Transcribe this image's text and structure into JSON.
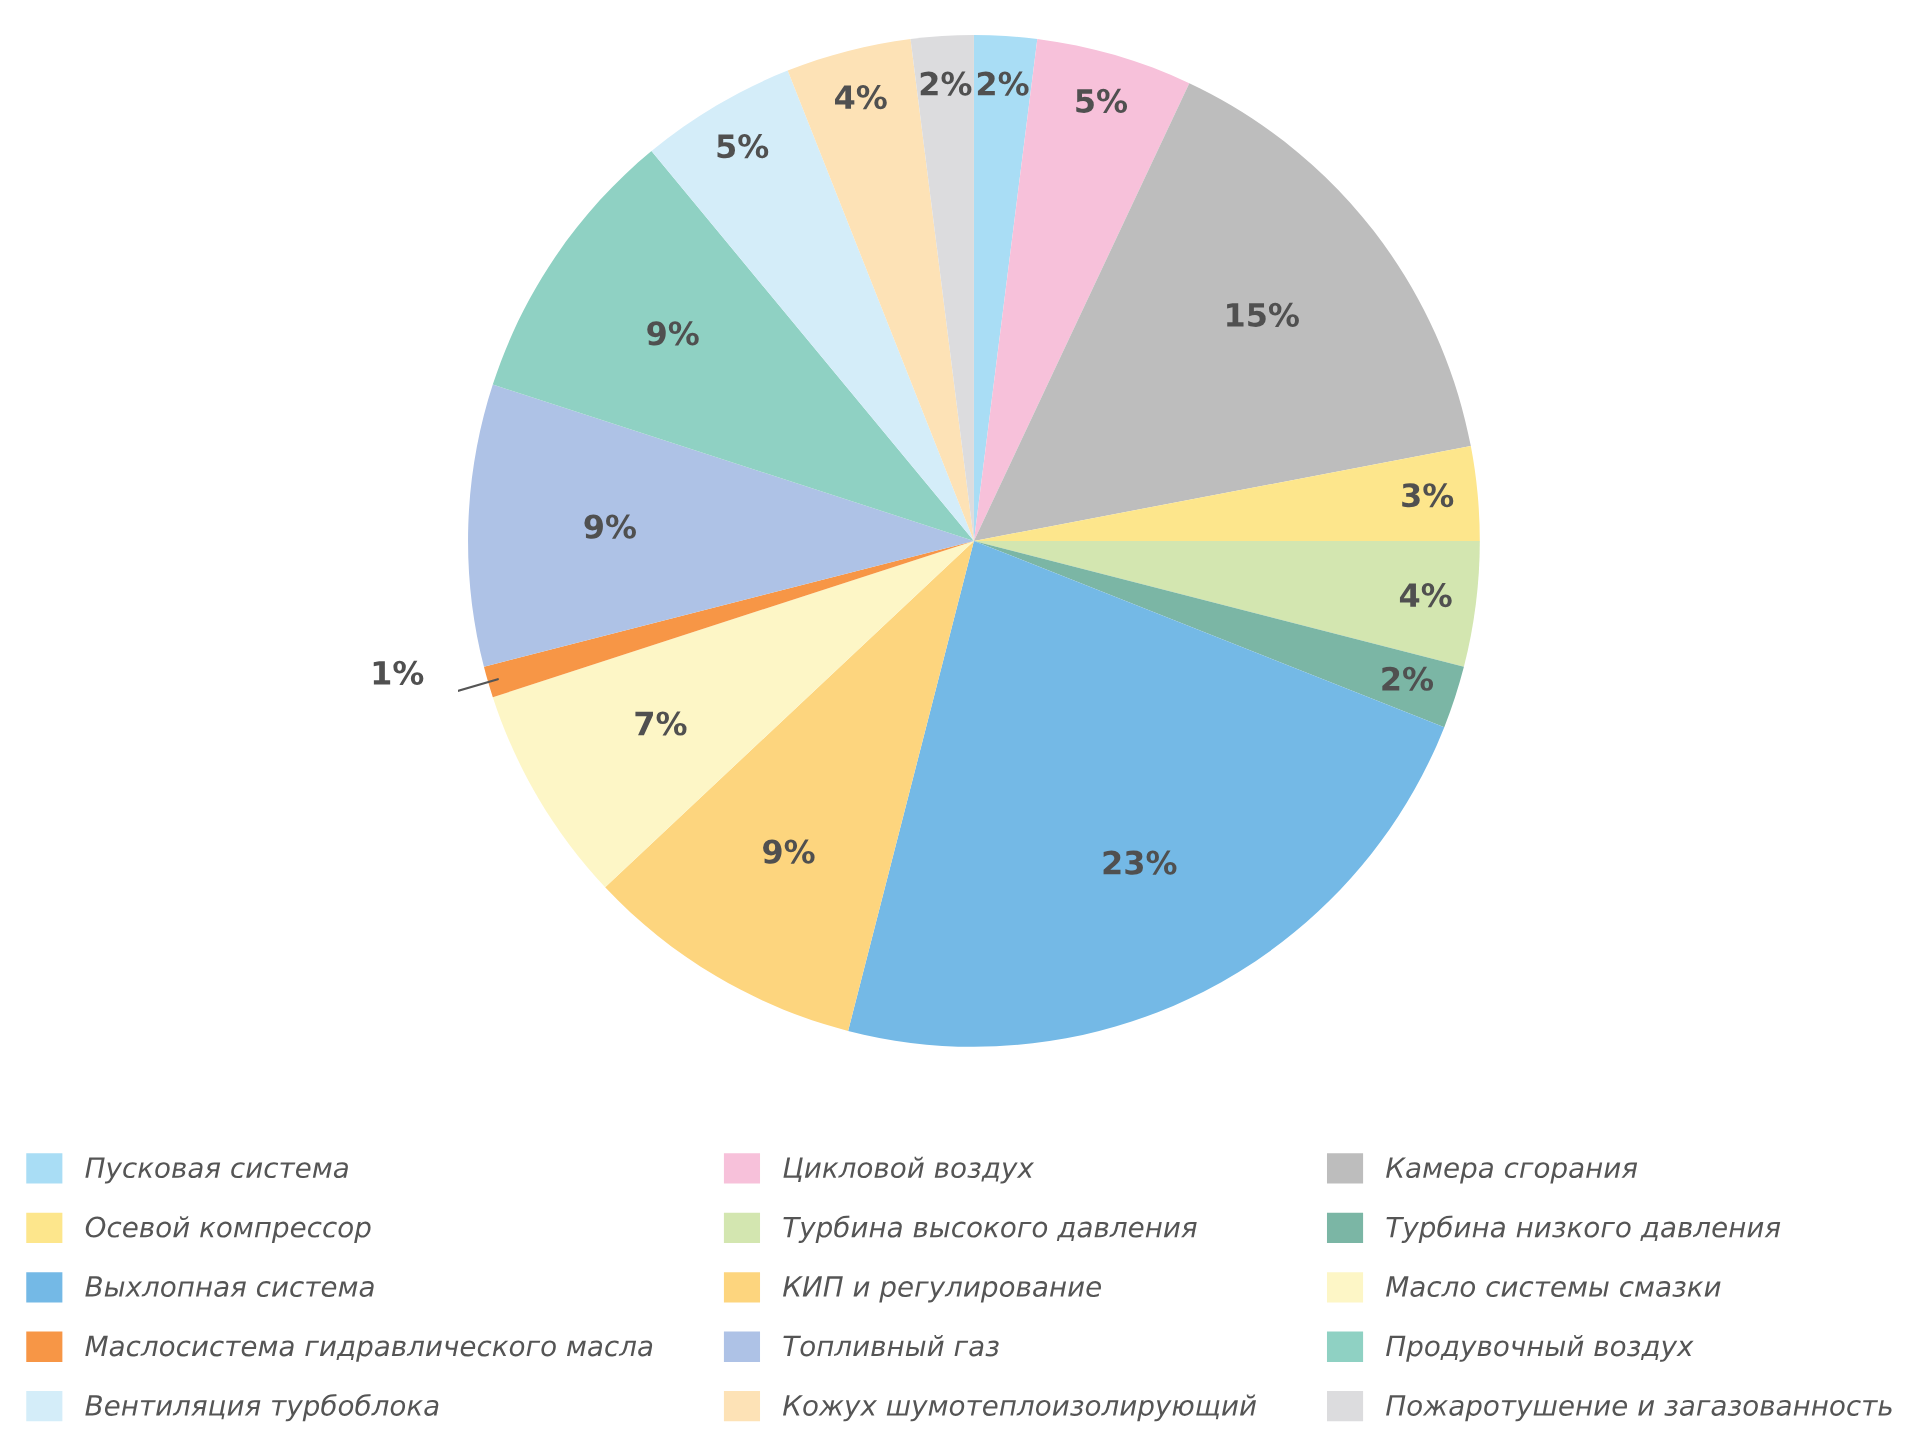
{
  "chart_data": {
    "type": "pie",
    "categories": [
      "Пусковая система",
      "Цикловой воздух",
      "Камера сгорания",
      "Осевой компрессор",
      "Турбина высокого давления",
      "Турбина низкого давления",
      "Выхлопная система",
      "КИП и регулирование",
      "Масло системы смазки",
      "Маслосистема гидравлического масла",
      "Топливный газ",
      "Продувочный воздух",
      "Вентиляция турбоблока",
      "Кожух шумотеплоизолирующий",
      "Пожаротушение и загазованность"
    ],
    "values": [
      2,
      5,
      15,
      3,
      4,
      2,
      23,
      9,
      7,
      1,
      9,
      9,
      5,
      4,
      2
    ],
    "value_labels": [
      "2%",
      "5%",
      "15%",
      "3%",
      "4%",
      "2%",
      "23%",
      "9%",
      "7%",
      "1%",
      "9%",
      "9%",
      "5%",
      "4%",
      "2%"
    ],
    "colors": [
      "#a9ddf5",
      "#f7c1da",
      "#bdbdbd",
      "#fde68c",
      "#d3e6b0",
      "#7bb6a5",
      "#74b9e6",
      "#fdd57e",
      "#fdf6c6",
      "#f79646",
      "#aec2e6",
      "#8fd1c3",
      "#d4edf9",
      "#fde2b6",
      "#dcdcde"
    ],
    "legend": "bottom"
  }
}
